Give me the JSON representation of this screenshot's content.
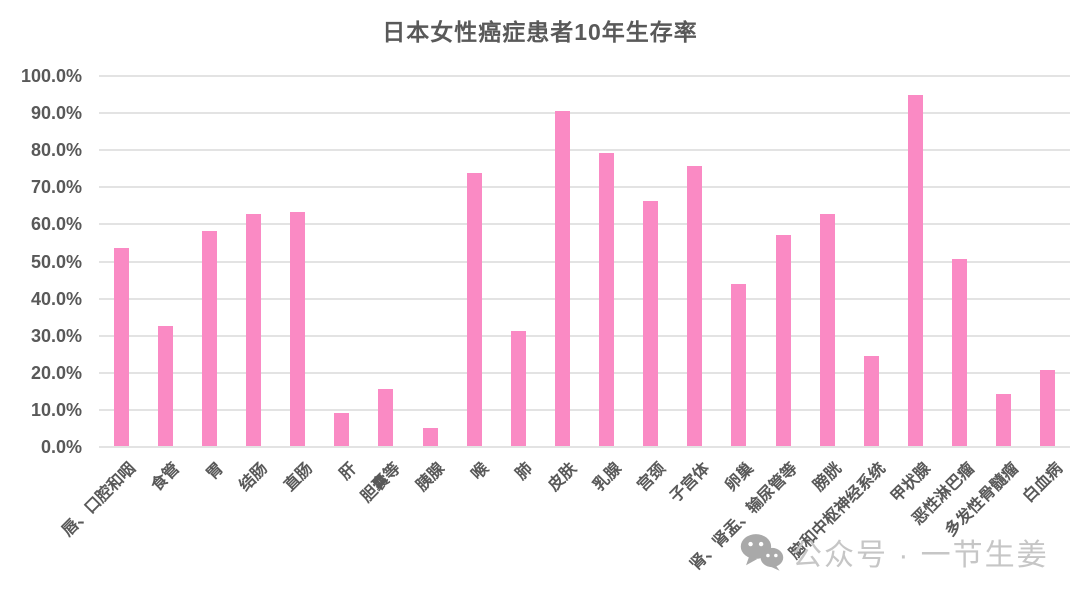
{
  "title": "日本女性癌症患者10年生存率",
  "watermark": {
    "icon": "wechat-icon",
    "text": "公众号 · 一节生姜"
  },
  "colors": {
    "background": "#FFFFFF",
    "bar": "#FA8AC4",
    "gridline": "#E3E3E3",
    "axis_text": "#595959",
    "title_text": "#595959",
    "watermark_text": "#C6C6C6",
    "watermark_icon": "#A9A9A9"
  },
  "y_axis": {
    "ticks": [
      "100.0%",
      "90.0%",
      "80.0%",
      "70.0%",
      "60.0%",
      "50.0%",
      "40.0%",
      "30.0%",
      "20.0%",
      "10.0%",
      "0.0%"
    ],
    "min": 0,
    "max": 100,
    "step": 10
  },
  "chart_data": {
    "type": "bar",
    "title": "日本女性癌症患者10年生存率",
    "categories": [
      "唇、口腔和咽",
      "食管",
      "胃",
      "结肠",
      "直肠",
      "肝",
      "胆囊等",
      "胰腺",
      "喉",
      "肺",
      "皮肤",
      "乳腺",
      "宫颈",
      "子宫体",
      "卵巢",
      "肾、肾盂、输尿管等",
      "膀胱",
      "脑和中枢神经系统",
      "甲状腺",
      "恶性淋巴瘤",
      "多发性骨髓瘤",
      "白血病"
    ],
    "values": [
      53.5,
      32.3,
      58.0,
      62.5,
      63.0,
      9.0,
      15.5,
      4.8,
      73.5,
      31.0,
      90.3,
      79.0,
      66.0,
      75.5,
      43.7,
      57.0,
      62.5,
      24.2,
      94.5,
      50.5,
      14.0,
      20.4
    ],
    "xlabel": "",
    "ylabel": "",
    "ylim": [
      0,
      100
    ],
    "grid": true,
    "legend": false,
    "x_label_rotation_deg": 45,
    "bar_color": "#FA8AC4"
  }
}
